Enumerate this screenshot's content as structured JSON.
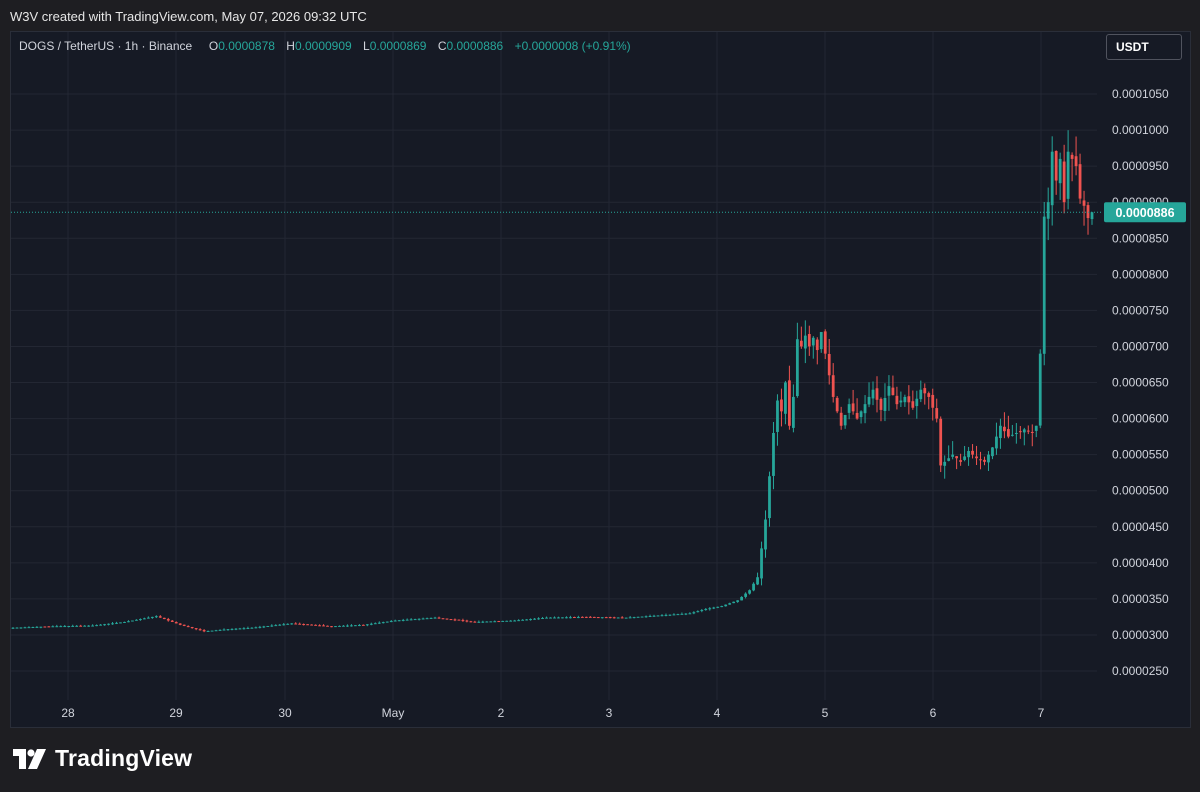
{
  "header": {
    "caption": "W3V created with TradingView.com, May 07, 2026 09:32 UTC"
  },
  "legend": {
    "symbol": "DOGS / TetherUS · 1h · Binance",
    "open_key": "O",
    "open": "0.0000878",
    "high_key": "H",
    "high": "0.0000909",
    "low_key": "L",
    "low": "0.0000869",
    "close_key": "C",
    "close": "0.0000886",
    "change": "+0.0000008 (+0.91%)"
  },
  "currency_label": "USDT",
  "last_price_label": "0.0000886",
  "footer": {
    "brand": "TradingView"
  },
  "colors": {
    "up": "#26a69a",
    "down": "#ef5350",
    "background": "#161a25",
    "grid": "#232733",
    "price_line": "#26a69a"
  },
  "chart_data": {
    "type": "candlestick",
    "interval": "1h",
    "ylim": [
      2e-05,
      0.000107
    ],
    "x_range": [
      27.5,
      8.0
    ],
    "grid": true,
    "y_ticks": [
      {
        "value": 2.5e-05,
        "label": "0.0000250"
      },
      {
        "value": 3e-05,
        "label": "0.0000300"
      },
      {
        "value": 3.5e-05,
        "label": "0.0000350"
      },
      {
        "value": 4e-05,
        "label": "0.0000400"
      },
      {
        "value": 4.5e-05,
        "label": "0.0000450"
      },
      {
        "value": 5e-05,
        "label": "0.0000500"
      },
      {
        "value": 5.5e-05,
        "label": "0.0000550"
      },
      {
        "value": 6e-05,
        "label": "0.0000600"
      },
      {
        "value": 6.5e-05,
        "label": "0.0000650"
      },
      {
        "value": 7e-05,
        "label": "0.0000700"
      },
      {
        "value": 7.5e-05,
        "label": "0.0000750"
      },
      {
        "value": 8e-05,
        "label": "0.0000800"
      },
      {
        "value": 8.5e-05,
        "label": "0.0000850"
      },
      {
        "value": 9e-05,
        "label": "0.0000900"
      },
      {
        "value": 9.5e-05,
        "label": "0.0000950"
      },
      {
        "value": 0.0001,
        "label": "0.0001000"
      },
      {
        "value": 0.000105,
        "label": "0.0001050"
      }
    ],
    "x_ticks": [
      "28",
      "29",
      "30",
      "May",
      "2",
      "3",
      "4",
      "5",
      "6",
      "7"
    ],
    "last_price": 8.86e-05,
    "close_points": [
      [
        0,
        3.1e-05
      ],
      [
        10,
        3.12e-05
      ],
      [
        20,
        3.13e-05
      ],
      [
        28,
        3.18e-05
      ],
      [
        36,
        3.26e-05
      ],
      [
        42,
        3.14e-05
      ],
      [
        48,
        3.05e-05
      ],
      [
        54,
        3.08e-05
      ],
      [
        60,
        3.1e-05
      ],
      [
        70,
        3.16e-05
      ],
      [
        80,
        3.12e-05
      ],
      [
        88,
        3.14e-05
      ],
      [
        96,
        3.2e-05
      ],
      [
        106,
        3.24e-05
      ],
      [
        116,
        3.18e-05
      ],
      [
        126,
        3.2e-05
      ],
      [
        134,
        3.24e-05
      ],
      [
        144,
        3.25e-05
      ],
      [
        154,
        3.24e-05
      ],
      [
        162,
        3.27e-05
      ],
      [
        170,
        3.3e-05
      ],
      [
        174,
        3.36e-05
      ],
      [
        178,
        3.4e-05
      ],
      [
        182,
        3.48e-05
      ],
      [
        185,
        3.62e-05
      ],
      [
        187,
        3.8e-05
      ],
      [
        188,
        4.2e-05
      ],
      [
        189,
        4.6e-05
      ],
      [
        190,
        5.2e-05
      ],
      [
        191,
        5.8e-05
      ],
      [
        192,
        6.25e-05
      ],
      [
        193,
        6.1e-05
      ],
      [
        194,
        6.5e-05
      ],
      [
        195,
        5.9e-05
      ],
      [
        196,
        6.3e-05
      ],
      [
        197,
        7.1e-05
      ],
      [
        198,
        7e-05
      ],
      [
        199,
        7.15e-05
      ],
      [
        200,
        7e-05
      ],
      [
        201,
        7.12e-05
      ],
      [
        202,
        6.95e-05
      ],
      [
        203,
        7.2e-05
      ],
      [
        204,
        6.9e-05
      ],
      [
        205,
        6.6e-05
      ],
      [
        206,
        6.3e-05
      ],
      [
        207,
        6.1e-05
      ],
      [
        208,
        5.9e-05
      ],
      [
        210,
        6.2e-05
      ],
      [
        212,
        6e-05
      ],
      [
        214,
        6.2e-05
      ],
      [
        216,
        6.4e-05
      ],
      [
        218,
        6.12e-05
      ],
      [
        220,
        6.45e-05
      ],
      [
        222,
        6.2e-05
      ],
      [
        224,
        6.3e-05
      ],
      [
        226,
        6.15e-05
      ],
      [
        228,
        6.4e-05
      ],
      [
        230,
        6.3e-05
      ],
      [
        232,
        6e-05
      ],
      [
        233,
        5.35e-05
      ],
      [
        234,
        5.4e-05
      ],
      [
        236,
        5.5e-05
      ],
      [
        238,
        5.4e-05
      ],
      [
        240,
        5.55e-05
      ],
      [
        242,
        5.45e-05
      ],
      [
        244,
        5.4e-05
      ],
      [
        246,
        5.6e-05
      ],
      [
        248,
        5.9e-05
      ],
      [
        250,
        5.75e-05
      ],
      [
        252,
        5.8e-05
      ],
      [
        254,
        5.85e-05
      ],
      [
        256,
        5.8e-05
      ],
      [
        257,
        5.9e-05
      ],
      [
        258,
        6.9e-05
      ],
      [
        259,
        8.8e-05
      ],
      [
        260,
        9e-05
      ],
      [
        261,
        9.7e-05
      ],
      [
        262,
        9.3e-05
      ],
      [
        263,
        9.6e-05
      ],
      [
        264,
        9e-05
      ],
      [
        265,
        9.7e-05
      ],
      [
        266,
        9.6e-05
      ],
      [
        267,
        9.5e-05
      ],
      [
        268,
        9.05e-05
      ],
      [
        269,
        8.95e-05
      ],
      [
        270,
        8.78e-05
      ],
      [
        271,
        8.86e-05
      ]
    ]
  }
}
